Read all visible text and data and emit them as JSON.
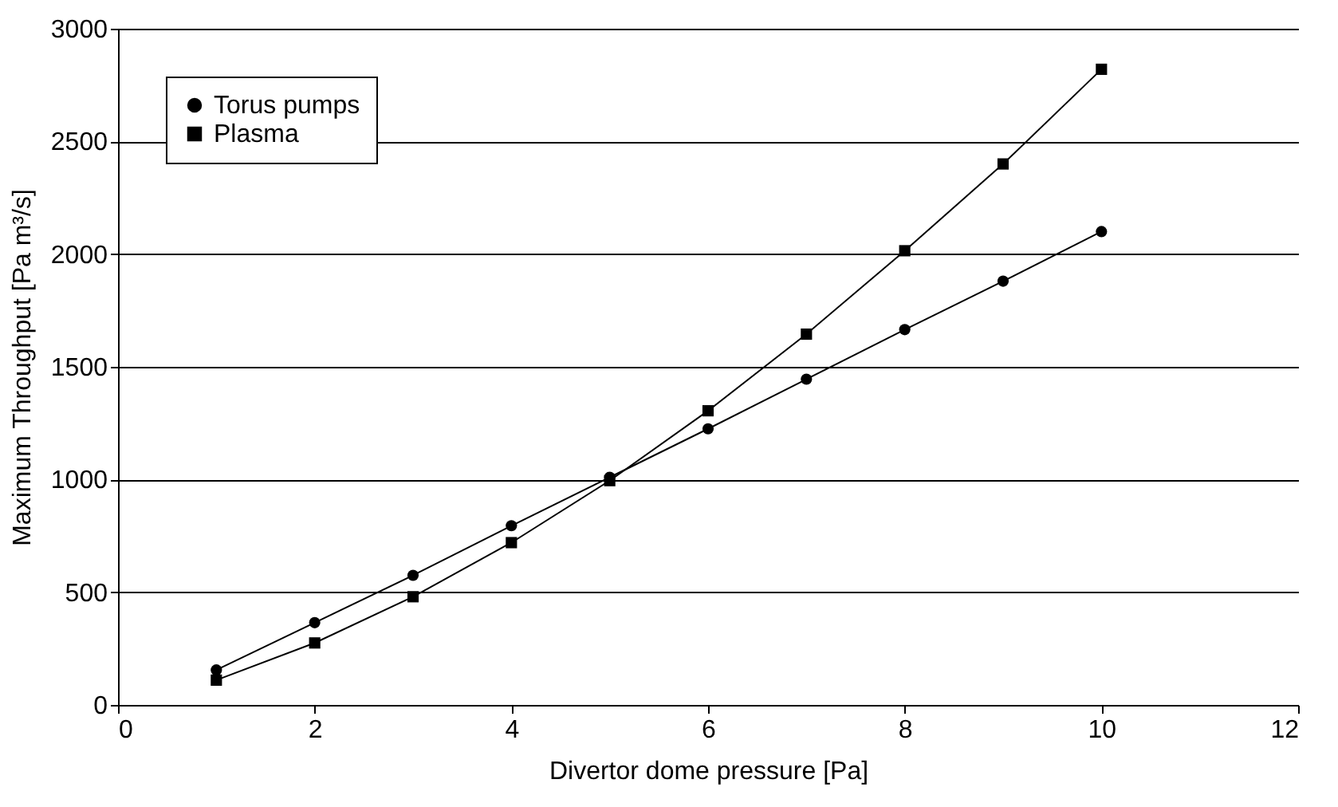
{
  "chart_data": {
    "type": "line",
    "xlabel": "Divertor dome pressure [Pa]",
    "ylabel": "Maximum Throughput [Pa m³/s]",
    "x": [
      1,
      2,
      3,
      4,
      5,
      6,
      7,
      8,
      9,
      10
    ],
    "series": [
      {
        "name": "Torus pumps",
        "color": "#000000",
        "marker": "circle",
        "values": [
          155,
          365,
          575,
          795,
          1010,
          1225,
          1445,
          1665,
          1880,
          2100
        ]
      },
      {
        "name": "Plasma",
        "color": "#000000",
        "marker": "square",
        "values": [
          110,
          275,
          480,
          720,
          995,
          1305,
          1645,
          2015,
          2400,
          2820
        ]
      }
    ],
    "xlim": [
      0,
      12
    ],
    "xticks": [
      0,
      2,
      4,
      6,
      8,
      10,
      12
    ],
    "ylim": [
      0,
      3000
    ],
    "yticks": [
      0,
      500,
      1000,
      1500,
      2000,
      2500,
      3000
    ],
    "grid": "y",
    "legend": "top left",
    "line_style": "solid"
  }
}
